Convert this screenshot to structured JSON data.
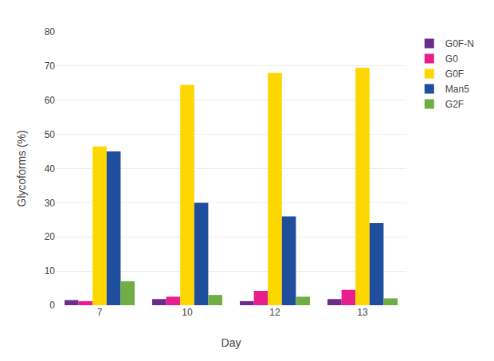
{
  "chart_data": {
    "type": "bar",
    "xlabel": "Day",
    "ylabel": "Glycoforms (%)",
    "categories": [
      "7",
      "10",
      "12",
      "13"
    ],
    "series": [
      {
        "name": "G0F-N",
        "color": "#6b2d8b",
        "values": [
          1.5,
          1.8,
          1.2,
          1.8
        ]
      },
      {
        "name": "G0",
        "color": "#e91e8c",
        "values": [
          1.2,
          2.5,
          4.2,
          4.5
        ]
      },
      {
        "name": "G0F",
        "color": "#ffd700",
        "values": [
          46.5,
          64.5,
          68.0,
          69.5
        ]
      },
      {
        "name": "Man5",
        "color": "#1f4e9c",
        "values": [
          45.0,
          30.0,
          26.0,
          24.0
        ]
      },
      {
        "name": "G2F",
        "color": "#70ad47",
        "values": [
          7.0,
          3.0,
          2.5,
          2.0
        ]
      }
    ],
    "ylim": [
      0,
      80
    ],
    "yticks": [
      0,
      10,
      20,
      30,
      40,
      50,
      60,
      70,
      80
    ],
    "grid": true,
    "legend": "upper right"
  }
}
